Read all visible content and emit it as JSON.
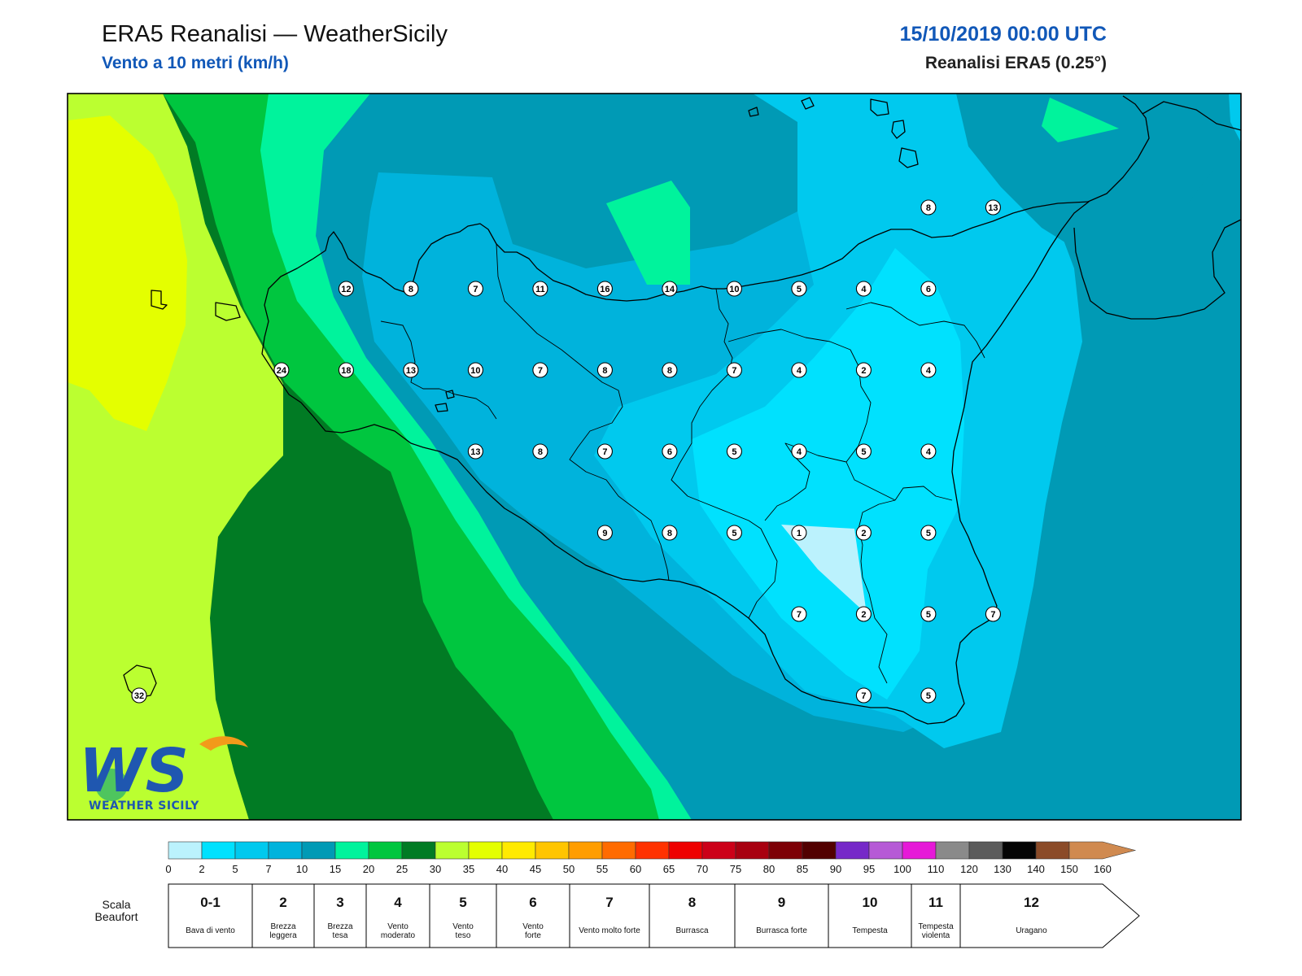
{
  "header": {
    "title": "ERA5 Reanalisi — WeatherSicily",
    "subtitle": "Vento a 10 metri (km/h)",
    "date": "15/10/2019 00:00 UTC",
    "source": "Reanalisi ERA5 (0.25°)"
  },
  "logo": {
    "letters": "WS",
    "name": "WEATHER SICILY"
  },
  "stations": [
    {
      "lon": 12.6,
      "lat": 38.25,
      "value": "12"
    },
    {
      "lon": 13.1,
      "lat": 38.25,
      "value": "8"
    },
    {
      "lon": 13.6,
      "lat": 38.25,
      "value": "7"
    },
    {
      "lon": 14.1,
      "lat": 38.25,
      "value": "11"
    },
    {
      "lon": 14.6,
      "lat": 38.25,
      "value": "16"
    },
    {
      "lon": 15.1,
      "lat": 38.25,
      "value": "14"
    },
    {
      "lon": 15.6,
      "lat": 38.25,
      "value": "10"
    },
    {
      "lon": 16.1,
      "lat": 38.25,
      "value": "5"
    },
    {
      "lon": 16.6,
      "lat": 38.25,
      "value": "4"
    },
    {
      "lon": 17.1,
      "lat": 38.25,
      "value": "6"
    },
    {
      "lon": 17.1,
      "lat": 38.75,
      "value": "8"
    },
    {
      "lon": 17.6,
      "lat": 38.75,
      "value": "13"
    },
    {
      "lon": 12.1,
      "lat": 37.75,
      "value": "24"
    },
    {
      "lon": 12.6,
      "lat": 37.75,
      "value": "18"
    },
    {
      "lon": 13.1,
      "lat": 37.75,
      "value": "13"
    },
    {
      "lon": 13.6,
      "lat": 37.75,
      "value": "10"
    },
    {
      "lon": 14.1,
      "lat": 37.75,
      "value": "7"
    },
    {
      "lon": 14.6,
      "lat": 37.75,
      "value": "8"
    },
    {
      "lon": 15.1,
      "lat": 37.75,
      "value": "8"
    },
    {
      "lon": 15.6,
      "lat": 37.75,
      "value": "7"
    },
    {
      "lon": 16.1,
      "lat": 37.75,
      "value": "4"
    },
    {
      "lon": 16.6,
      "lat": 37.75,
      "value": "2"
    },
    {
      "lon": 17.1,
      "lat": 37.75,
      "value": "4"
    },
    {
      "lon": 13.6,
      "lat": 37.25,
      "value": "13"
    },
    {
      "lon": 14.1,
      "lat": 37.25,
      "value": "8"
    },
    {
      "lon": 14.6,
      "lat": 37.25,
      "value": "7"
    },
    {
      "lon": 15.1,
      "lat": 37.25,
      "value": "6"
    },
    {
      "lon": 15.6,
      "lat": 37.25,
      "value": "5"
    },
    {
      "lon": 16.1,
      "lat": 37.25,
      "value": "4"
    },
    {
      "lon": 16.6,
      "lat": 37.25,
      "value": "5"
    },
    {
      "lon": 17.1,
      "lat": 37.25,
      "value": "4"
    },
    {
      "lon": 14.6,
      "lat": 36.75,
      "value": "9"
    },
    {
      "lon": 15.1,
      "lat": 36.75,
      "value": "8"
    },
    {
      "lon": 15.6,
      "lat": 36.75,
      "value": "5"
    },
    {
      "lon": 16.1,
      "lat": 36.75,
      "value": "1"
    },
    {
      "lon": 16.6,
      "lat": 36.75,
      "value": "2"
    },
    {
      "lon": 17.1,
      "lat": 36.75,
      "value": "5"
    },
    {
      "lon": 16.1,
      "lat": 36.25,
      "value": "7"
    },
    {
      "lon": 16.6,
      "lat": 36.25,
      "value": "2"
    },
    {
      "lon": 17.1,
      "lat": 36.25,
      "value": "5"
    },
    {
      "lon": 17.6,
      "lat": 36.25,
      "value": "7"
    },
    {
      "lon": 16.6,
      "lat": 35.75,
      "value": "7"
    },
    {
      "lon": 17.1,
      "lat": 35.75,
      "value": "5"
    },
    {
      "lon": 11.0,
      "lat": 35.75,
      "value": "32"
    }
  ],
  "colorbar": {
    "ticks": [
      "0",
      "2",
      "5",
      "7",
      "10",
      "15",
      "20",
      "25",
      "30",
      "35",
      "40",
      "45",
      "50",
      "55",
      "60",
      "65",
      "70",
      "75",
      "80",
      "85",
      "90",
      "95",
      "100",
      "110",
      "120",
      "130",
      "140",
      "150",
      "160"
    ],
    "colors": [
      "#bbf2fd",
      "#00e1fe",
      "#00c9ee",
      "#00b3dc",
      "#009ab5",
      "#00f39c",
      "#00c63f",
      "#017b24",
      "#bbff30",
      "#e4ff00",
      "#ffea00",
      "#ffc500",
      "#ff9d00",
      "#ff6b00",
      "#ff3200",
      "#ee0000",
      "#cc0018",
      "#a80010",
      "#7d0006",
      "#520000",
      "#7628c8",
      "#b65ad6",
      "#e619d8",
      "#8a8a8a",
      "#5b5b5b",
      "#050505",
      "#8b4b28",
      "#d08a50"
    ]
  },
  "beaufort": {
    "title": "Scala Beaufort",
    "levels": [
      {
        "num": "0-1",
        "desc": "Bava di vento"
      },
      {
        "num": "2",
        "desc": "Brezza leggera"
      },
      {
        "num": "3",
        "desc": "Brezza tesa"
      },
      {
        "num": "4",
        "desc": "Vento moderato"
      },
      {
        "num": "5",
        "desc": "Vento teso"
      },
      {
        "num": "6",
        "desc": "Vento forte"
      },
      {
        "num": "7",
        "desc": "Vento molto forte"
      },
      {
        "num": "8",
        "desc": "Burrasca"
      },
      {
        "num": "9",
        "desc": "Burrasca forte"
      },
      {
        "num": "10",
        "desc": "Tempesta"
      },
      {
        "num": "11",
        "desc": "Tempesta violenta"
      },
      {
        "num": "12",
        "desc": "Uragano"
      }
    ]
  }
}
